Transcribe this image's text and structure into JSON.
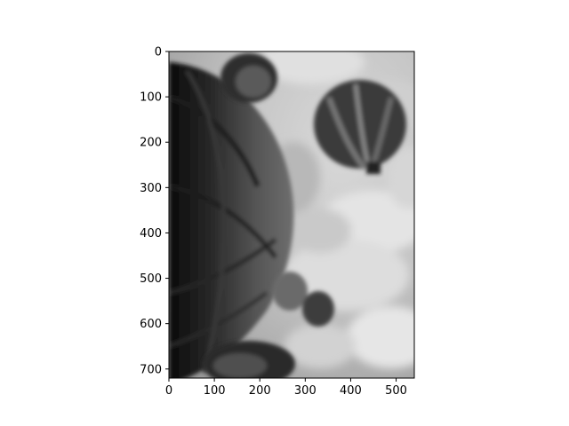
{
  "figure": {
    "background": "#ffffff",
    "image": {
      "description_tag": "grayscale blurred photo of hot air balloons against clouds",
      "colormap": "gray"
    },
    "x_axis": {
      "range": [
        0,
        540
      ],
      "ticks": [
        0,
        100,
        200,
        300,
        400,
        500
      ],
      "tick_labels": [
        "0",
        "100",
        "200",
        "300",
        "400",
        "500"
      ]
    },
    "y_axis": {
      "range": [
        0,
        720
      ],
      "inverted": true,
      "ticks": [
        0,
        100,
        200,
        300,
        400,
        500,
        600,
        700
      ],
      "tick_labels": [
        "0",
        "100",
        "200",
        "300",
        "400",
        "500",
        "600",
        "700"
      ]
    }
  }
}
